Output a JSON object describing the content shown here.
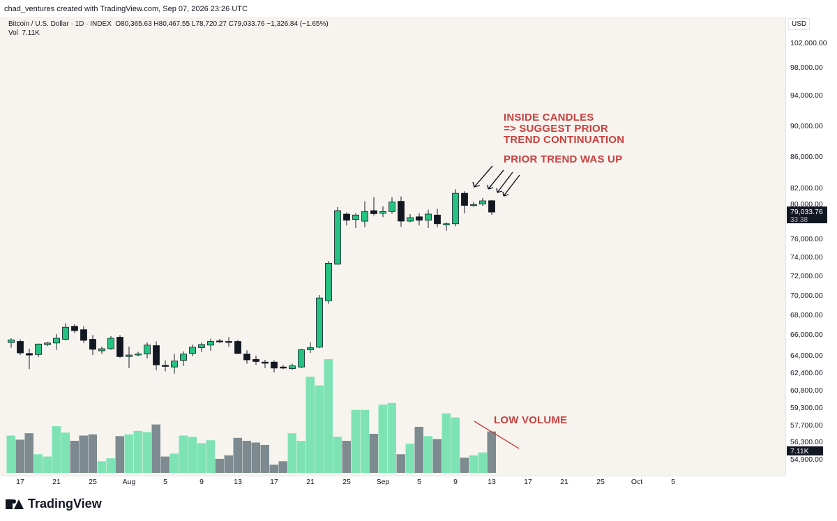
{
  "header": {
    "created_by": "chad_ventures created with TradingView.com, Sep 07, 2026 23:26 UTC"
  },
  "legend": {
    "symbol": "Bitcoin / U.S. Dollar · 1D · INDEX",
    "open": "O80,365.63",
    "high": "H80,467.55",
    "low": "L78,720.27",
    "close": "C79,033.76",
    "change": "−1,326.84 (−1.65%)",
    "vol_label": "Vol",
    "vol_value": "7.11K"
  },
  "axis": {
    "currency": "USD",
    "price_ticks": [
      "102,000.00",
      "98,000.00",
      "94,000.00",
      "90,000.00",
      "86,000.00",
      "82,000.00",
      "80,000.00",
      "76,000.00",
      "74,000.00",
      "72,000.00",
      "70,000.00",
      "68,000.00",
      "66,000.00",
      "64,000.00",
      "62,400.00",
      "60,800.00",
      "59,300.00",
      "57,700.00",
      "56,300.00",
      "54,900.00"
    ],
    "last_price": "79,033.76",
    "countdown": "33:38",
    "vol_badge": "7.11K",
    "date_ticks": [
      "17",
      "21",
      "25",
      "Aug",
      "5",
      "9",
      "13",
      "17",
      "21",
      "25",
      "Sep",
      "5",
      "9",
      "13",
      "17",
      "21",
      "25",
      "Oct",
      "5"
    ]
  },
  "annotations": {
    "inside_candles": [
      "INSIDE CANDLES",
      "=> SUGGEST PRIOR",
      "TREND CONTINUATION"
    ],
    "prior_trend": "PRIOR TREND WAS UP",
    "low_volume": "LOW VOLUME"
  },
  "branding": {
    "logo_text": "TradingView"
  },
  "colors": {
    "up": "#26c281",
    "down": "#131722",
    "vol_up": "#7ee3b4",
    "vol_down": "#7d8a90",
    "annotation": "#c9403e",
    "background": "#f7f4ef"
  },
  "chart_data": {
    "type": "candlestick",
    "title": "Bitcoin / U.S. Dollar · 1D · INDEX",
    "xlabel": "",
    "ylabel": "",
    "ylim": [
      54900,
      102000
    ],
    "candles": [
      {
        "o": 65200,
        "h": 65600,
        "l": 64700,
        "c": 65450
      },
      {
        "o": 65300,
        "h": 65500,
        "l": 64000,
        "c": 64200
      },
      {
        "o": 64150,
        "h": 64600,
        "l": 62700,
        "c": 64000
      },
      {
        "o": 64050,
        "h": 65100,
        "l": 63800,
        "c": 65050
      },
      {
        "o": 65000,
        "h": 65250,
        "l": 64850,
        "c": 65150
      },
      {
        "o": 65150,
        "h": 66000,
        "l": 64500,
        "c": 65600
      },
      {
        "o": 65500,
        "h": 67100,
        "l": 65400,
        "c": 66700
      },
      {
        "o": 66800,
        "h": 67000,
        "l": 66100,
        "c": 66350
      },
      {
        "o": 66450,
        "h": 66800,
        "l": 65150,
        "c": 65400
      },
      {
        "o": 65500,
        "h": 65900,
        "l": 64000,
        "c": 64550
      },
      {
        "o": 64400,
        "h": 64800,
        "l": 64100,
        "c": 64600
      },
      {
        "o": 64600,
        "h": 65800,
        "l": 64500,
        "c": 65600
      },
      {
        "o": 65700,
        "h": 65900,
        "l": 63750,
        "c": 63850
      },
      {
        "o": 63850,
        "h": 64800,
        "l": 62800,
        "c": 64000
      },
      {
        "o": 64000,
        "h": 64300,
        "l": 63900,
        "c": 64100
      },
      {
        "o": 64100,
        "h": 65200,
        "l": 63700,
        "c": 64950
      },
      {
        "o": 64900,
        "h": 65300,
        "l": 62600,
        "c": 63100
      },
      {
        "o": 63050,
        "h": 63500,
        "l": 62500,
        "c": 62950
      },
      {
        "o": 62900,
        "h": 64100,
        "l": 62300,
        "c": 63450
      },
      {
        "o": 63500,
        "h": 64350,
        "l": 63000,
        "c": 64100
      },
      {
        "o": 64150,
        "h": 65000,
        "l": 63900,
        "c": 64750
      },
      {
        "o": 64700,
        "h": 65200,
        "l": 64300,
        "c": 65000
      },
      {
        "o": 64950,
        "h": 65550,
        "l": 64400,
        "c": 65300
      },
      {
        "o": 65350,
        "h": 65550,
        "l": 65150,
        "c": 65300
      },
      {
        "o": 65300,
        "h": 65700,
        "l": 64800,
        "c": 65250
      },
      {
        "o": 65300,
        "h": 65450,
        "l": 64100,
        "c": 64150
      },
      {
        "o": 64100,
        "h": 64450,
        "l": 63200,
        "c": 63550
      },
      {
        "o": 63600,
        "h": 63950,
        "l": 63100,
        "c": 63400
      },
      {
        "o": 63350,
        "h": 63550,
        "l": 62800,
        "c": 63250
      },
      {
        "o": 63350,
        "h": 63500,
        "l": 62400,
        "c": 62800
      },
      {
        "o": 62900,
        "h": 63100,
        "l": 62700,
        "c": 62800
      },
      {
        "o": 62750,
        "h": 63200,
        "l": 62650,
        "c": 63000
      },
      {
        "o": 62900,
        "h": 64600,
        "l": 62800,
        "c": 64500
      },
      {
        "o": 64500,
        "h": 65200,
        "l": 64200,
        "c": 64700
      },
      {
        "o": 64750,
        "h": 70000,
        "l": 64650,
        "c": 69700
      },
      {
        "o": 69400,
        "h": 73550,
        "l": 69100,
        "c": 73300
      },
      {
        "o": 73200,
        "h": 79600,
        "l": 73150,
        "c": 79200
      },
      {
        "o": 78800,
        "h": 79000,
        "l": 77500,
        "c": 78100
      },
      {
        "o": 78200,
        "h": 78900,
        "l": 77200,
        "c": 78700
      },
      {
        "o": 78000,
        "h": 80300,
        "l": 77300,
        "c": 79100
      },
      {
        "o": 79200,
        "h": 80800,
        "l": 78650,
        "c": 78850
      },
      {
        "o": 78900,
        "h": 79700,
        "l": 78450,
        "c": 79100
      },
      {
        "o": 79100,
        "h": 80800,
        "l": 78850,
        "c": 80200
      },
      {
        "o": 80300,
        "h": 80900,
        "l": 77350,
        "c": 78000
      },
      {
        "o": 78000,
        "h": 78800,
        "l": 77850,
        "c": 78400
      },
      {
        "o": 78500,
        "h": 78900,
        "l": 77500,
        "c": 78100
      },
      {
        "o": 78100,
        "h": 79300,
        "l": 77200,
        "c": 78800
      },
      {
        "o": 78700,
        "h": 79400,
        "l": 77300,
        "c": 77700
      },
      {
        "o": 77700,
        "h": 77850,
        "l": 76900,
        "c": 77700
      },
      {
        "o": 77700,
        "h": 81800,
        "l": 77400,
        "c": 81300
      },
      {
        "o": 81300,
        "h": 81550,
        "l": 78900,
        "c": 79800
      },
      {
        "o": 79800,
        "h": 80200,
        "l": 79650,
        "c": 79900
      },
      {
        "o": 79950,
        "h": 80700,
        "l": 79750,
        "c": 80350
      },
      {
        "o": 80365.63,
        "h": 80467.55,
        "l": 78720.27,
        "c": 79033.76
      }
    ],
    "volume": [
      6.4,
      5.7,
      6.8,
      3.2,
      2.8,
      8.0,
      6.9,
      5.5,
      6.4,
      6.6,
      2.0,
      2.5,
      6.3,
      6.6,
      7.2,
      7.0,
      8.3,
      2.8,
      3.3,
      6.4,
      6.2,
      5.1,
      5.6,
      2.4,
      3.0,
      6.0,
      5.5,
      5.2,
      4.8,
      1.4,
      2.0,
      6.8,
      5.5,
      16.5,
      15.0,
      19.5,
      6.2,
      5.5,
      10.8,
      10.8,
      6.7,
      11.7,
      12.0,
      3.2,
      5.0,
      7.9,
      6.3,
      5.8,
      10.2,
      9.5,
      2.6,
      3.0,
      3.5,
      7.11
    ]
  }
}
